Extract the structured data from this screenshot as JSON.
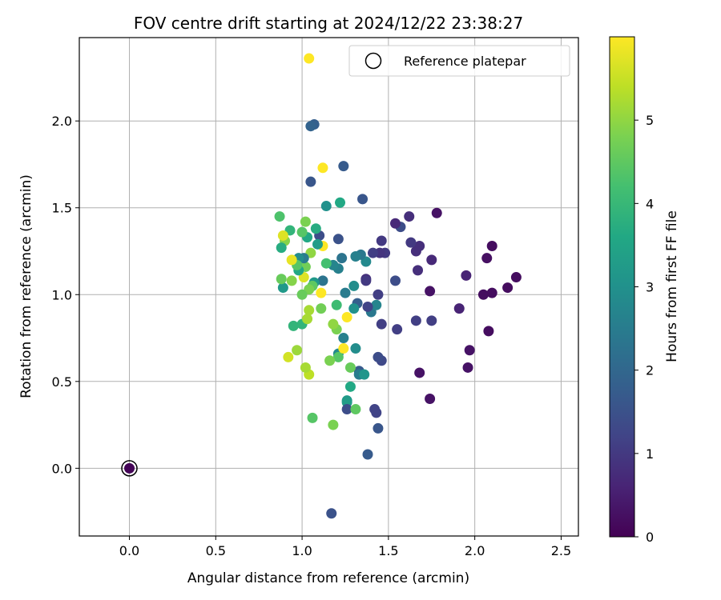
{
  "chart_data": {
    "type": "scatter",
    "title": "FOV centre drift starting at 2024/12/22 23:38:27",
    "xlabel": "Angular distance from reference (arcmin)",
    "ylabel": "Rotation from reference (arcmin)",
    "xlim": [
      -0.29,
      2.6
    ],
    "ylim": [
      -0.39,
      2.48
    ],
    "x_ticks": [
      0.0,
      0.5,
      1.0,
      1.5,
      2.0,
      2.5
    ],
    "x_tick_labels": [
      "0.0",
      "0.5",
      "1.0",
      "1.5",
      "2.0",
      "2.5"
    ],
    "y_ticks": [
      0.0,
      0.5,
      1.0,
      1.5,
      2.0
    ],
    "y_tick_labels": [
      "0.0",
      "0.5",
      "1.0",
      "1.5",
      "2.0"
    ],
    "grid": true,
    "legend": {
      "placement": "top-right",
      "entries": [
        "Reference platepar"
      ]
    },
    "colorbar": {
      "label": "Hours from first FF file",
      "colormap": "viridis",
      "range": [
        0,
        6.0
      ],
      "ticks": [
        0,
        1,
        2,
        3,
        4,
        5
      ],
      "tick_labels": [
        "0",
        "1",
        "2",
        "3",
        "4",
        "5"
      ]
    },
    "reference_point": {
      "x": 0.0,
      "y": 0.0,
      "c": 0.05
    },
    "points": [
      {
        "x": 2.24,
        "y": 1.1,
        "c": 0.2
      },
      {
        "x": 2.19,
        "y": 1.04,
        "c": 0.2
      },
      {
        "x": 2.1,
        "y": 1.28,
        "c": 0.2
      },
      {
        "x": 2.1,
        "y": 1.01,
        "c": 0.2
      },
      {
        "x": 2.07,
        "y": 1.21,
        "c": 0.25
      },
      {
        "x": 2.05,
        "y": 1.0,
        "c": 0.2
      },
      {
        "x": 2.08,
        "y": 0.79,
        "c": 0.2
      },
      {
        "x": 1.97,
        "y": 0.68,
        "c": 0.3
      },
      {
        "x": 1.96,
        "y": 0.58,
        "c": 0.3
      },
      {
        "x": 1.95,
        "y": 1.11,
        "c": 0.6
      },
      {
        "x": 1.91,
        "y": 0.92,
        "c": 0.6
      },
      {
        "x": 1.78,
        "y": 1.47,
        "c": 0.3
      },
      {
        "x": 1.75,
        "y": 1.2,
        "c": 0.7
      },
      {
        "x": 1.75,
        "y": 0.85,
        "c": 1.1
      },
      {
        "x": 1.74,
        "y": 1.02,
        "c": 0.3
      },
      {
        "x": 1.74,
        "y": 0.4,
        "c": 0.3
      },
      {
        "x": 1.68,
        "y": 0.55,
        "c": 0.3
      },
      {
        "x": 1.68,
        "y": 1.28,
        "c": 0.8
      },
      {
        "x": 1.66,
        "y": 1.25,
        "c": 0.8
      },
      {
        "x": 1.67,
        "y": 1.14,
        "c": 0.8
      },
      {
        "x": 1.66,
        "y": 0.85,
        "c": 1.1
      },
      {
        "x": 1.63,
        "y": 1.3,
        "c": 1.0
      },
      {
        "x": 1.62,
        "y": 1.45,
        "c": 0.8
      },
      {
        "x": 1.57,
        "y": 1.39,
        "c": 1.4
      },
      {
        "x": 1.54,
        "y": 1.41,
        "c": 0.7
      },
      {
        "x": 1.54,
        "y": 1.08,
        "c": 1.4
      },
      {
        "x": 1.55,
        "y": 0.8,
        "c": 1.1
      },
      {
        "x": 1.48,
        "y": 1.24,
        "c": 1.0
      },
      {
        "x": 1.46,
        "y": 1.31,
        "c": 1.0
      },
      {
        "x": 1.45,
        "y": 1.24,
        "c": 0.9
      },
      {
        "x": 1.46,
        "y": 0.83,
        "c": 1.1
      },
      {
        "x": 1.46,
        "y": 0.62,
        "c": 1.3
      },
      {
        "x": 1.44,
        "y": 0.64,
        "c": 1.4
      },
      {
        "x": 1.44,
        "y": 1.0,
        "c": 1.1
      },
      {
        "x": 1.43,
        "y": 0.32,
        "c": 1.2
      },
      {
        "x": 1.42,
        "y": 0.34,
        "c": 1.2
      },
      {
        "x": 1.44,
        "y": 0.23,
        "c": 1.6
      },
      {
        "x": 1.38,
        "y": 0.08,
        "c": 1.7
      },
      {
        "x": 1.41,
        "y": 1.24,
        "c": 1.1
      },
      {
        "x": 1.4,
        "y": 0.9,
        "c": 2.4
      },
      {
        "x": 1.43,
        "y": 0.94,
        "c": 2.7
      },
      {
        "x": 1.38,
        "y": 0.93,
        "c": 1.2
      },
      {
        "x": 1.37,
        "y": 1.09,
        "c": 0.8
      },
      {
        "x": 1.37,
        "y": 1.08,
        "c": 1.0
      },
      {
        "x": 1.37,
        "y": 1.19,
        "c": 2.8
      },
      {
        "x": 1.35,
        "y": 1.55,
        "c": 1.6
      },
      {
        "x": 1.34,
        "y": 1.23,
        "c": 2.4
      },
      {
        "x": 1.33,
        "y": 0.56,
        "c": 1.7
      },
      {
        "x": 1.33,
        "y": 0.54,
        "c": 2.5
      },
      {
        "x": 1.36,
        "y": 0.54,
        "c": 3.1
      },
      {
        "x": 1.32,
        "y": 0.95,
        "c": 1.8
      },
      {
        "x": 1.31,
        "y": 0.69,
        "c": 2.9
      },
      {
        "x": 1.3,
        "y": 1.05,
        "c": 2.9
      },
      {
        "x": 1.31,
        "y": 1.22,
        "c": 2.6
      },
      {
        "x": 1.3,
        "y": 0.92,
        "c": 3.0
      },
      {
        "x": 1.28,
        "y": 0.47,
        "c": 3.6
      },
      {
        "x": 1.28,
        "y": 0.58,
        "c": 4.6
      },
      {
        "x": 1.26,
        "y": 0.39,
        "c": 3.2
      },
      {
        "x": 1.26,
        "y": 0.38,
        "c": 3.3
      },
      {
        "x": 1.26,
        "y": 0.34,
        "c": 1.4
      },
      {
        "x": 1.31,
        "y": 0.34,
        "c": 4.5
      },
      {
        "x": 1.24,
        "y": 1.74,
        "c": 1.7
      },
      {
        "x": 1.25,
        "y": 1.01,
        "c": 2.5
      },
      {
        "x": 1.24,
        "y": 0.75,
        "c": 2.6
      },
      {
        "x": 1.23,
        "y": 1.21,
        "c": 2.3
      },
      {
        "x": 1.22,
        "y": 1.53,
        "c": 3.6
      },
      {
        "x": 1.21,
        "y": 1.32,
        "c": 1.5
      },
      {
        "x": 1.21,
        "y": 1.15,
        "c": 2.6
      },
      {
        "x": 1.21,
        "y": 0.66,
        "c": 2.8
      },
      {
        "x": 1.21,
        "y": 0.64,
        "c": 4.4
      },
      {
        "x": 1.24,
        "y": 0.69,
        "c": 6.0
      },
      {
        "x": 1.26,
        "y": 0.87,
        "c": 6.0
      },
      {
        "x": 1.2,
        "y": 0.94,
        "c": 4.1
      },
      {
        "x": 1.2,
        "y": 0.8,
        "c": 4.8
      },
      {
        "x": 1.18,
        "y": 0.83,
        "c": 5.0
      },
      {
        "x": 1.18,
        "y": 1.17,
        "c": 2.7
      },
      {
        "x": 1.16,
        "y": 0.62,
        "c": 4.8
      },
      {
        "x": 1.18,
        "y": 0.25,
        "c": 4.8
      },
      {
        "x": 1.17,
        "y": -0.26,
        "c": 1.5
      },
      {
        "x": 1.14,
        "y": 1.51,
        "c": 3.0
      },
      {
        "x": 1.14,
        "y": 1.18,
        "c": 4.2
      },
      {
        "x": 1.12,
        "y": 1.73,
        "c": 6.0
      },
      {
        "x": 1.12,
        "y": 1.28,
        "c": 6.0
      },
      {
        "x": 1.12,
        "y": 1.08,
        "c": 2.3
      },
      {
        "x": 1.11,
        "y": 1.01,
        "c": 6.0
      },
      {
        "x": 1.11,
        "y": 0.92,
        "c": 4.7
      },
      {
        "x": 1.1,
        "y": 1.34,
        "c": 1.4
      },
      {
        "x": 1.09,
        "y": 1.29,
        "c": 3.3
      },
      {
        "x": 1.08,
        "y": 1.38,
        "c": 3.7
      },
      {
        "x": 1.07,
        "y": 1.98,
        "c": 1.8
      },
      {
        "x": 1.05,
        "y": 1.97,
        "c": 1.9
      },
      {
        "x": 1.05,
        "y": 1.65,
        "c": 1.6
      },
      {
        "x": 1.07,
        "y": 1.07,
        "c": 3.2
      },
      {
        "x": 1.06,
        "y": 1.05,
        "c": 4.5
      },
      {
        "x": 1.06,
        "y": 0.29,
        "c": 4.4
      },
      {
        "x": 1.05,
        "y": 1.24,
        "c": 5.0
      },
      {
        "x": 1.04,
        "y": 2.36,
        "c": 6.0
      },
      {
        "x": 1.04,
        "y": 1.03,
        "c": 4.8
      },
      {
        "x": 1.04,
        "y": 0.91,
        "c": 5.2
      },
      {
        "x": 1.04,
        "y": 0.54,
        "c": 5.4
      },
      {
        "x": 1.02,
        "y": 1.16,
        "c": 4.7
      },
      {
        "x": 1.02,
        "y": 0.58,
        "c": 5.2
      },
      {
        "x": 1.02,
        "y": 1.42,
        "c": 4.8
      },
      {
        "x": 1.03,
        "y": 1.33,
        "c": 3.6
      },
      {
        "x": 1.01,
        "y": 1.1,
        "c": 5.7
      },
      {
        "x": 1.01,
        "y": 1.21,
        "c": 2.5
      },
      {
        "x": 1.0,
        "y": 1.36,
        "c": 4.4
      },
      {
        "x": 1.0,
        "y": 1.0,
        "c": 4.6
      },
      {
        "x": 1.0,
        "y": 0.83,
        "c": 3.9
      },
      {
        "x": 1.03,
        "y": 0.86,
        "c": 5.2
      },
      {
        "x": 0.98,
        "y": 1.21,
        "c": 2.9
      },
      {
        "x": 0.98,
        "y": 1.14,
        "c": 3.6
      },
      {
        "x": 0.97,
        "y": 1.17,
        "c": 4.4
      },
      {
        "x": 0.97,
        "y": 0.68,
        "c": 5.1
      },
      {
        "x": 0.95,
        "y": 0.82,
        "c": 3.9
      },
      {
        "x": 0.94,
        "y": 1.2,
        "c": 5.8
      },
      {
        "x": 0.94,
        "y": 1.08,
        "c": 4.9
      },
      {
        "x": 0.93,
        "y": 1.37,
        "c": 3.9
      },
      {
        "x": 0.92,
        "y": 0.64,
        "c": 5.6
      },
      {
        "x": 0.9,
        "y": 1.31,
        "c": 4.9
      },
      {
        "x": 0.89,
        "y": 1.04,
        "c": 3.2
      },
      {
        "x": 0.89,
        "y": 1.34,
        "c": 5.7
      },
      {
        "x": 0.88,
        "y": 1.27,
        "c": 3.7
      },
      {
        "x": 0.88,
        "y": 1.09,
        "c": 4.6
      },
      {
        "x": 0.87,
        "y": 1.45,
        "c": 4.3
      }
    ]
  }
}
